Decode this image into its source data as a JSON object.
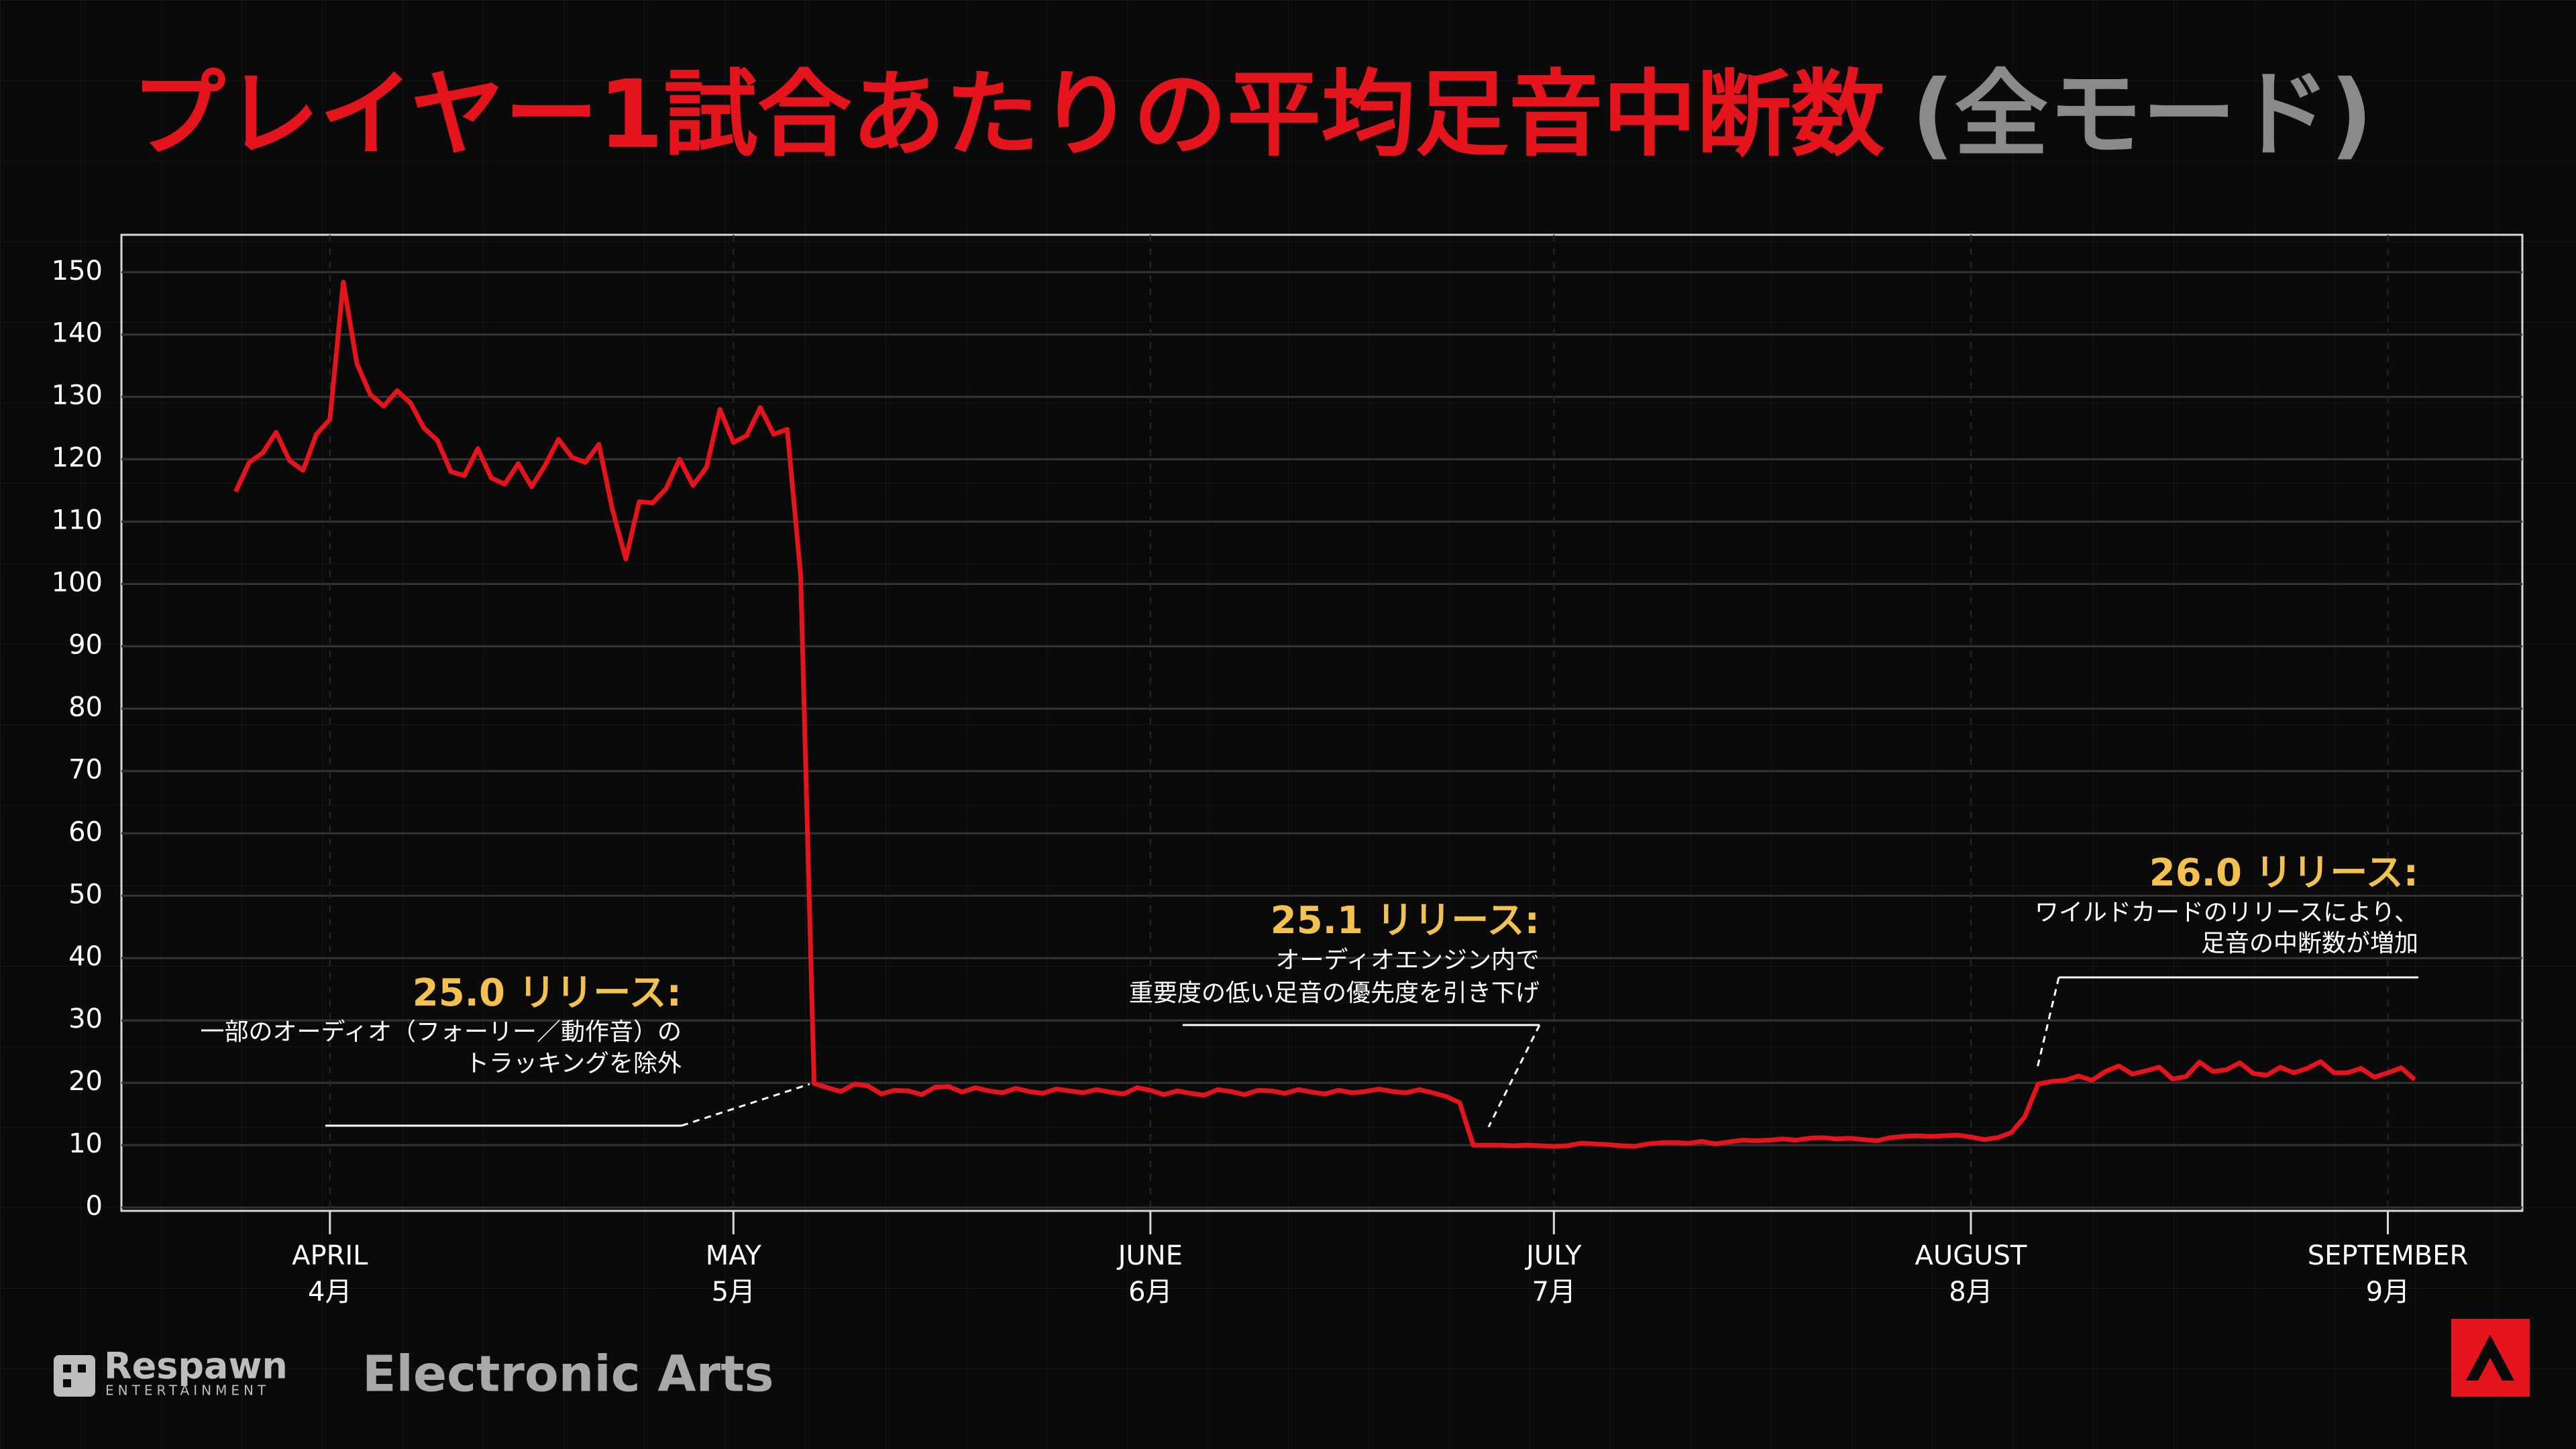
{
  "chart_data": {
    "type": "line",
    "title": "プレイヤー1試合あたりの平均足音中断数",
    "title_note": "(全モード)",
    "x": [
      -7,
      -6,
      -5,
      -4,
      -3,
      -2,
      -1,
      0,
      1,
      2,
      3,
      4,
      5,
      6,
      7,
      8,
      9,
      10,
      11,
      12,
      13,
      14,
      15,
      16,
      17,
      18,
      19,
      20,
      21,
      22,
      23,
      24,
      25,
      26,
      27,
      28,
      29,
      30,
      31,
      32,
      33,
      34,
      35,
      36,
      37,
      38,
      39,
      40,
      41,
      42,
      43,
      44,
      45,
      46,
      47,
      48,
      49,
      50,
      51,
      52,
      53,
      54,
      55,
      56,
      57,
      58,
      59,
      60,
      61,
      62,
      63,
      64,
      65,
      66,
      67,
      68,
      69,
      70,
      71,
      72,
      73,
      74,
      75,
      76,
      77,
      78,
      79,
      80,
      81,
      82,
      83,
      84,
      85,
      86,
      87,
      88,
      89,
      90,
      91,
      92,
      93,
      94,
      95,
      96,
      97,
      98,
      99,
      100,
      101,
      102,
      103,
      104,
      105,
      106,
      107,
      108,
      109,
      110,
      111,
      112,
      113,
      114,
      115,
      116,
      117,
      118,
      119,
      120,
      121,
      122,
      123,
      124,
      125,
      126,
      127,
      128,
      129,
      130,
      131,
      132,
      133,
      134,
      135,
      136,
      137,
      138,
      139,
      140,
      141,
      142,
      143,
      144,
      145,
      146,
      147,
      148,
      149,
      150,
      151,
      152,
      153,
      154,
      155
    ],
    "values": [
      114.8,
      119.5,
      121,
      124.3,
      119.8,
      118.2,
      124,
      126.4,
      148.4,
      135.4,
      130.4,
      128.5,
      131,
      129,
      125,
      123,
      118,
      117.4,
      121.7,
      117,
      116,
      119.3,
      115.6,
      119,
      123.2,
      120.3,
      119.5,
      122.4,
      112,
      104,
      113.2,
      113,
      115.3,
      120,
      115.8,
      118.7,
      128,
      122.7,
      123.8,
      128.3,
      124,
      124.8,
      101.5,
      19.9,
      19.2,
      18.6,
      19.8,
      19.5,
      18.2,
      18.8,
      18.7,
      18.1,
      19.3,
      19.4,
      18.5,
      19.2,
      18.7,
      18.4,
      19.1,
      18.6,
      18.3,
      19,
      18.7,
      18.4,
      18.9,
      18.5,
      18.2,
      19.2,
      18.8,
      18.1,
      18.7,
      18.3,
      18,
      18.9,
      18.6,
      18.1,
      18.8,
      18.7,
      18.3,
      18.9,
      18.5,
      18.2,
      18.8,
      18.4,
      18.6,
      19,
      18.6,
      18.4,
      18.9,
      18.4,
      17.8,
      16.8,
      10,
      10,
      10,
      9.9,
      10,
      9.9,
      9.8,
      9.9,
      10.3,
      10.2,
      10.1,
      9.9,
      9.8,
      10.2,
      10.4,
      10.4,
      10.3,
      10.6,
      10.2,
      10.5,
      10.8,
      10.7,
      10.8,
      11,
      10.8,
      11.1,
      11.2,
      11,
      11.1,
      10.9,
      10.7,
      11.2,
      11.4,
      11.5,
      11.4,
      11.5,
      11.6,
      11.3,
      10.9,
      11.2,
      12,
      14.5,
      19.8,
      20.2,
      20.4,
      21.1,
      20.4,
      21.8,
      22.7,
      21.4,
      21.9,
      22.5,
      20.6,
      21,
      23.3,
      21.8,
      22.1,
      23.2,
      21.5,
      21.2,
      22.5,
      21.6,
      22.3,
      23.4,
      21.6,
      21.6,
      22.3,
      20.9,
      21.6,
      22.4,
      20.5
    ],
    "color": "#e3141c",
    "xlim": [
      -15.5,
      163
    ],
    "xticks": [
      {
        "value": 0,
        "label": "APRIL"
      },
      {
        "value": 30,
        "label": "MAY"
      },
      {
        "value": 61,
        "label": "JUNE"
      },
      {
        "value": 91,
        "label": "JULY"
      },
      {
        "value": 122,
        "label": "AUGUST"
      },
      {
        "value": 153,
        "label": "SEPTEMBER"
      }
    ],
    "xtick_labels_ja": [
      "4月",
      "5月",
      "6月",
      "7月",
      "8月",
      "9月"
    ],
    "ylim": [
      0,
      156
    ],
    "yticks": [
      0,
      10,
      20,
      30,
      40,
      50,
      60,
      70,
      80,
      90,
      100,
      110,
      120,
      130,
      140,
      150
    ],
    "grid": true,
    "annotations": [
      {
        "title": "25.0 リリース:",
        "lines": [
          "一部のオーディオ（フォーリー／動作音）の",
          "トラッキングを除外"
        ]
      },
      {
        "title": "25.1 リリース:",
        "lines": [
          "オーディオエンジン内で",
          "重要度の低い足音の優先度を引き下げ"
        ]
      },
      {
        "title": "26.0 リリース:",
        "lines": [
          "ワイルドカードのリリースにより、",
          "足音の中断数が増加"
        ]
      }
    ]
  },
  "footer": {
    "respawn": "Respawn",
    "respawn_sub": "ENTERTAINMENT",
    "ea": "Electronic Arts"
  }
}
